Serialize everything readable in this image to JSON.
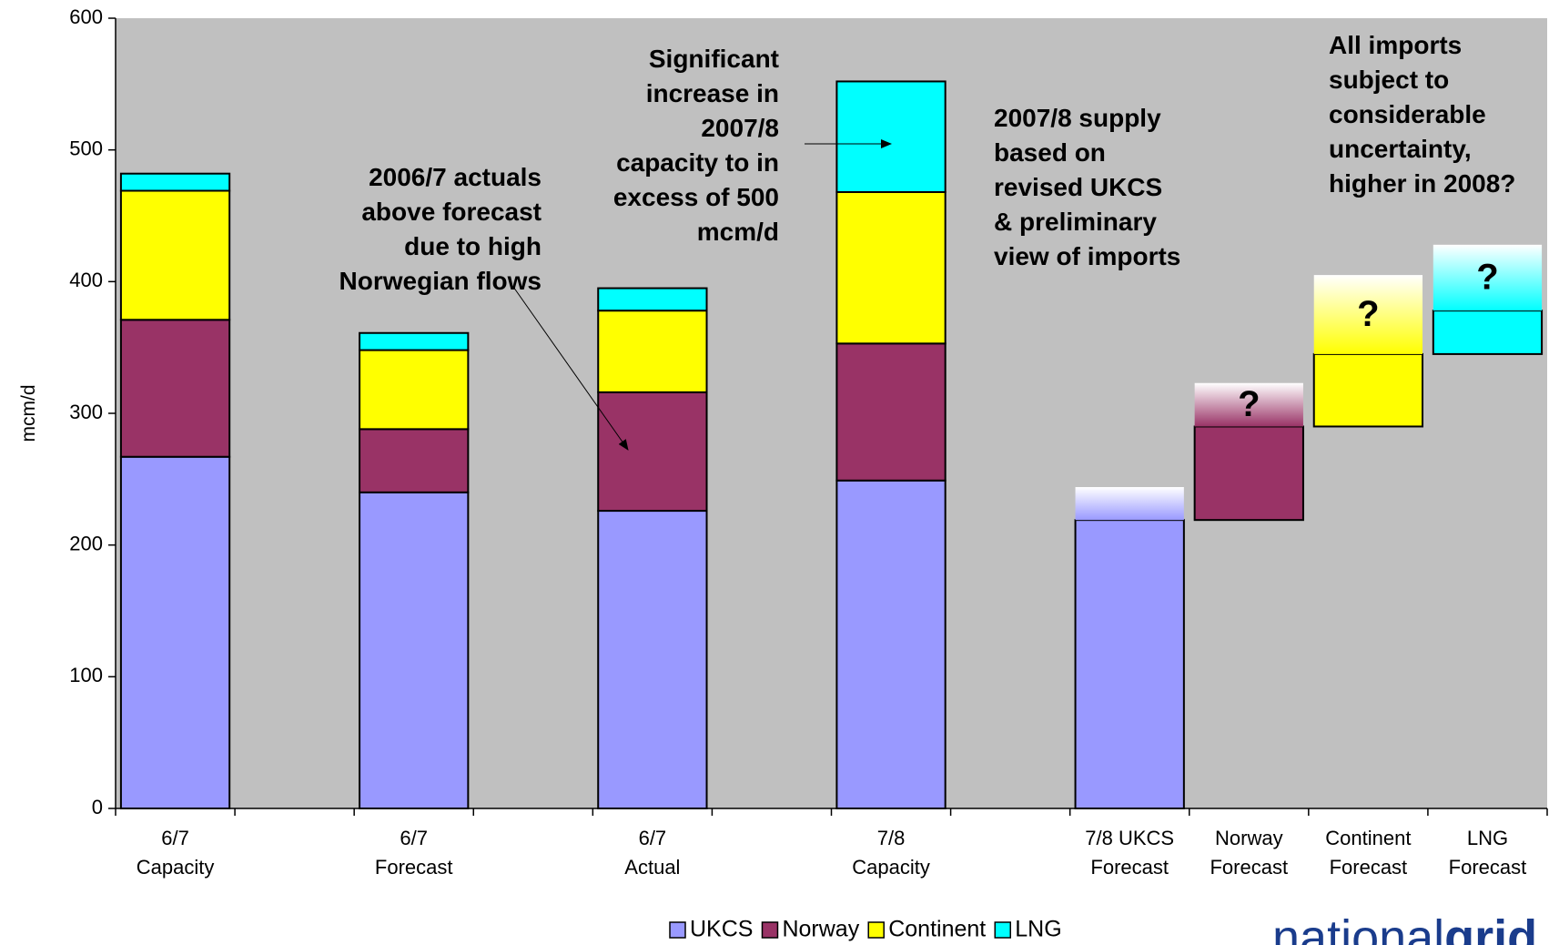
{
  "chart_data": {
    "type": "bar",
    "stacked": true,
    "waterfall_from": 8,
    "y_label": "mcm/d",
    "categories": [
      [
        "6/7",
        "Capacity"
      ],
      null,
      [
        "6/7",
        "Forecast"
      ],
      null,
      [
        "6/7",
        "Actual"
      ],
      null,
      [
        "7/8",
        "Capacity"
      ],
      null,
      [
        "7/8 UKCS",
        "Forecast"
      ],
      [
        "Norway",
        "Forecast"
      ],
      [
        "Continent",
        "Forecast"
      ],
      [
        "LNG",
        "Forecast"
      ]
    ],
    "series": [
      {
        "name": "UKCS",
        "color": "#9999ff",
        "values": [
          267,
          null,
          240,
          null,
          226,
          null,
          249,
          null,
          219,
          null,
          null,
          null
        ]
      },
      {
        "name": "Norway",
        "color": "#993366",
        "values": [
          104,
          null,
          48,
          null,
          90,
          null,
          104,
          null,
          null,
          71,
          null,
          null
        ]
      },
      {
        "name": "Continent",
        "color": "#ffff00",
        "values": [
          98,
          null,
          60,
          null,
          62,
          null,
          115,
          null,
          null,
          null,
          55,
          null
        ]
      },
      {
        "name": "LNG",
        "color": "#00ffff",
        "values": [
          13,
          null,
          13,
          null,
          17,
          null,
          84,
          null,
          null,
          null,
          null,
          33
        ]
      }
    ],
    "uncertainty": [
      null,
      null,
      null,
      null,
      null,
      null,
      null,
      null,
      25,
      33,
      60,
      50
    ],
    "uncertainty_labels": [
      null,
      null,
      null,
      null,
      null,
      null,
      null,
      null,
      null,
      "?",
      "?",
      "?"
    ],
    "ylim": [
      0,
      600
    ],
    "yticks": [
      0,
      100,
      200,
      300,
      400,
      500,
      600
    ],
    "grid": false,
    "legend": "bottom",
    "annotations": [
      [
        "2006/7 actuals",
        "above forecast",
        "due to high",
        "Norwegian flows"
      ],
      [
        "Significant",
        "increase in",
        "2007/8",
        "capacity to in",
        "excess of 500",
        "mcm/d"
      ],
      [
        "2007/8 supply",
        "based on",
        "revised UKCS",
        "& preliminary",
        "view of imports"
      ],
      [
        "All imports",
        "subject to",
        "considerable",
        "uncertainty,",
        "higher in 2008?"
      ]
    ],
    "logo": [
      "national",
      "grid"
    ]
  }
}
